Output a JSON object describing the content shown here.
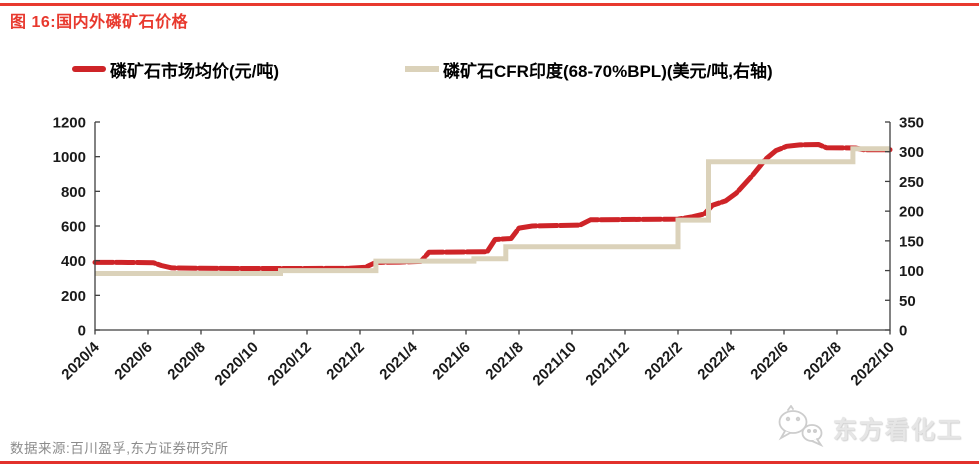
{
  "page": {
    "background": "#ffffff",
    "accent_red": "#e8392e"
  },
  "header": {
    "title": "图 16:国内外磷矿石价格"
  },
  "legend": {
    "items": [
      {
        "label": "磷矿石市场均价(元/吨)",
        "color": "#ce2428"
      },
      {
        "label": "磷矿石CFR印度(68-70%BPL)(美元/吨,右轴)",
        "color": "#dbd2ba"
      }
    ]
  },
  "chart_data": {
    "type": "line",
    "title": "国内外磷矿石价格",
    "grid": false,
    "legend_position": "top",
    "x": {
      "unit": "month",
      "start": "2020/4",
      "end": "2022/10",
      "tick_interval_months": 2,
      "tick_labels": [
        "2020/4",
        "2020/6",
        "2020/8",
        "2020/10",
        "2020/12",
        "2021/2",
        "2021/4",
        "2021/6",
        "2021/8",
        "2021/10",
        "2021/12",
        "2022/2",
        "2022/4",
        "2022/6",
        "2022/8",
        "2022/10"
      ]
    },
    "y_left": {
      "label": "元/吨",
      "min": 0,
      "max": 1200,
      "step": 200,
      "ticks": [
        0,
        200,
        400,
        600,
        800,
        1000,
        1200
      ]
    },
    "y_right": {
      "label": "美元/吨",
      "min": 0,
      "max": 350,
      "step": 50,
      "ticks": [
        0,
        50,
        100,
        150,
        200,
        250,
        300,
        350
      ]
    },
    "series": [
      {
        "name": "磷矿石市场均价(元/吨)",
        "axis": "left",
        "color": "#ce2428",
        "line_style": "thick-dashed",
        "points_month_value": [
          [
            0,
            390
          ],
          [
            1,
            390
          ],
          [
            2.2,
            388
          ],
          [
            2.5,
            372
          ],
          [
            2.9,
            358
          ],
          [
            4,
            356
          ],
          [
            6,
            355
          ],
          [
            8,
            355
          ],
          [
            9.6,
            356
          ],
          [
            10.2,
            362
          ],
          [
            10.6,
            390
          ],
          [
            11.5,
            392
          ],
          [
            12.3,
            396
          ],
          [
            12.6,
            448
          ],
          [
            14.8,
            452
          ],
          [
            15.1,
            522
          ],
          [
            15.7,
            528
          ],
          [
            16,
            588
          ],
          [
            16.5,
            600
          ],
          [
            18.3,
            605
          ],
          [
            18.7,
            636
          ],
          [
            22,
            640
          ],
          [
            22.5,
            652
          ],
          [
            23,
            670
          ],
          [
            23.3,
            720
          ],
          [
            23.8,
            745
          ],
          [
            24.2,
            790
          ],
          [
            24.8,
            890
          ],
          [
            25.3,
            985
          ],
          [
            25.7,
            1035
          ],
          [
            26.1,
            1060
          ],
          [
            26.6,
            1068
          ],
          [
            27.3,
            1070
          ],
          [
            27.6,
            1052
          ],
          [
            28.7,
            1050
          ],
          [
            29,
            1040
          ],
          [
            30,
            1040
          ]
        ]
      },
      {
        "name": "磷矿石CFR印度(68-70%BPL)(美元/吨,右轴)",
        "axis": "right",
        "color": "#dbd2ba",
        "line_style": "thick-solid-step",
        "points_month_value": [
          [
            0,
            95
          ],
          [
            7,
            95
          ],
          [
            7,
            100
          ],
          [
            10.6,
            100
          ],
          [
            10.6,
            116
          ],
          [
            14.3,
            116
          ],
          [
            14.3,
            120
          ],
          [
            15.5,
            120
          ],
          [
            15.5,
            140
          ],
          [
            22,
            140
          ],
          [
            22,
            185
          ],
          [
            23.15,
            185
          ],
          [
            23.15,
            283
          ],
          [
            28.6,
            283
          ],
          [
            28.6,
            305
          ],
          [
            30,
            305
          ]
        ]
      }
    ]
  },
  "footer": {
    "source": "数据来源:百川盈孚,东方证券研究所",
    "watermark": "东方看化工",
    "watermark_icon": "wechat-bubbles-icon"
  }
}
